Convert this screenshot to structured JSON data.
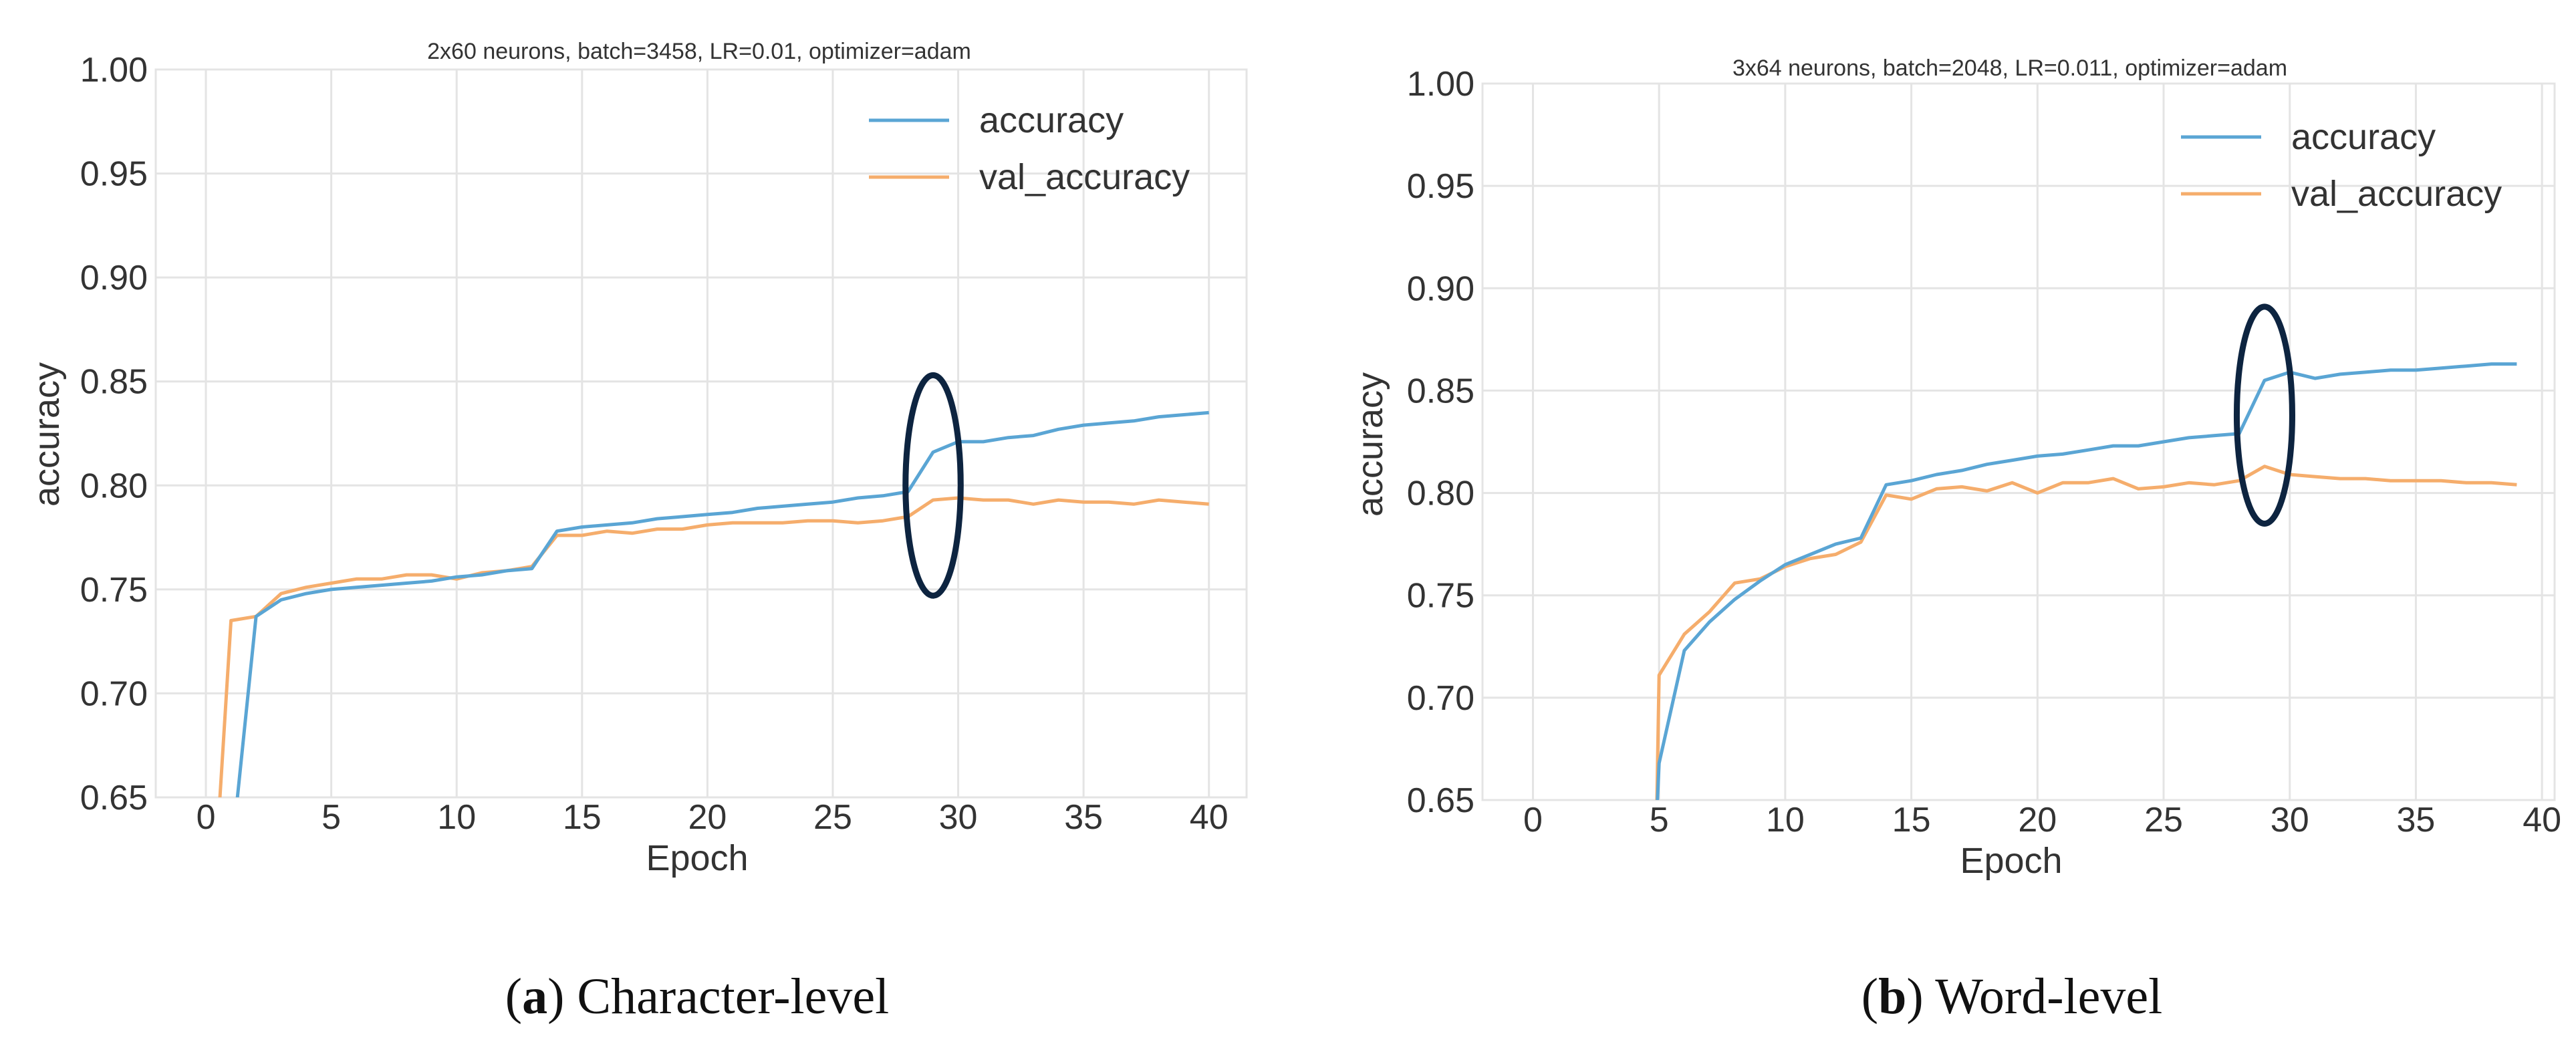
{
  "colors": {
    "accuracy": "#5aa5d4",
    "val_accuracy": "#f5ad6c",
    "grid": "#e4e4e4",
    "ellipse": "#0d2440"
  },
  "chart_data": [
    {
      "type": "line",
      "title": "2x60 neurons, batch=3458, LR=0.01, optimizer=adam",
      "xlabel": "Epoch",
      "ylabel": "accuracy",
      "xlim": [
        -2,
        41.5
      ],
      "ylim": [
        0.65,
        1.0
      ],
      "xticks": [
        0,
        5,
        10,
        15,
        20,
        25,
        30,
        35,
        40
      ],
      "yticks": [
        0.65,
        0.7,
        0.75,
        0.8,
        0.85,
        0.9,
        0.95,
        1.0
      ],
      "ytick_labels": [
        "0.65",
        "0.70",
        "0.75",
        "0.80",
        "0.85",
        "0.90",
        "0.95",
        "1.00"
      ],
      "grid": true,
      "legend": "top-right",
      "annotation": {
        "shape": "ellipse",
        "x": 29,
        "y": 0.8,
        "rx": 1.1,
        "ry": 0.053
      },
      "series": [
        {
          "name": "accuracy",
          "x": [
            1,
            2,
            3,
            4,
            5,
            6,
            7,
            8,
            9,
            10,
            11,
            12,
            13,
            14,
            15,
            16,
            17,
            18,
            19,
            20,
            21,
            22,
            23,
            24,
            25,
            26,
            27,
            28,
            29,
            30,
            31,
            32,
            33,
            34,
            35,
            36,
            37,
            38,
            39,
            40
          ],
          "values": [
            0.62,
            0.737,
            0.745,
            0.748,
            0.75,
            0.751,
            0.752,
            0.753,
            0.754,
            0.756,
            0.757,
            0.759,
            0.76,
            0.778,
            0.78,
            0.781,
            0.782,
            0.784,
            0.785,
            0.786,
            0.787,
            0.789,
            0.79,
            0.791,
            0.792,
            0.794,
            0.795,
            0.797,
            0.816,
            0.821,
            0.821,
            0.823,
            0.824,
            0.827,
            0.829,
            0.83,
            0.831,
            0.833,
            0.834,
            0.835
          ]
        },
        {
          "name": "val_accuracy",
          "x": [
            0.3,
            1,
            2,
            3,
            4,
            5,
            6,
            7,
            8,
            9,
            10,
            11,
            12,
            13,
            14,
            15,
            16,
            17,
            18,
            19,
            20,
            21,
            22,
            23,
            24,
            25,
            26,
            27,
            28,
            29,
            30,
            31,
            32,
            33,
            34,
            35,
            36,
            37,
            38,
            39,
            40
          ],
          "values": [
            0.6,
            0.735,
            0.737,
            0.748,
            0.751,
            0.753,
            0.755,
            0.755,
            0.757,
            0.757,
            0.755,
            0.758,
            0.759,
            0.761,
            0.776,
            0.776,
            0.778,
            0.777,
            0.779,
            0.779,
            0.781,
            0.782,
            0.782,
            0.782,
            0.783,
            0.783,
            0.782,
            0.783,
            0.785,
            0.793,
            0.794,
            0.793,
            0.793,
            0.791,
            0.793,
            0.792,
            0.792,
            0.791,
            0.793,
            0.792,
            0.791
          ]
        }
      ]
    },
    {
      "type": "line",
      "title": "3x64 neurons, batch=2048, LR=0.011, optimizer=adam",
      "xlabel": "Epoch",
      "ylabel": "accuracy",
      "xlim": [
        -2,
        40.5
      ],
      "ylim": [
        0.65,
        1.0
      ],
      "xticks": [
        0,
        5,
        10,
        15,
        20,
        25,
        30,
        35,
        40
      ],
      "yticks": [
        0.65,
        0.7,
        0.75,
        0.8,
        0.85,
        0.9,
        0.95,
        1.0
      ],
      "ytick_labels": [
        "0.65",
        "0.70",
        "0.75",
        "0.80",
        "0.85",
        "0.90",
        "0.95",
        "1.00"
      ],
      "grid": true,
      "legend": "top-right",
      "annotation": {
        "shape": "ellipse",
        "x": 29,
        "y": 0.838,
        "rx": 1.1,
        "ry": 0.053
      },
      "series": [
        {
          "name": "accuracy",
          "x": [
            4.9,
            5,
            6,
            7,
            8,
            9,
            10,
            11,
            12,
            13,
            14,
            15,
            16,
            17,
            18,
            19,
            20,
            21,
            22,
            23,
            24,
            25,
            26,
            27,
            28,
            29,
            30,
            31,
            32,
            33,
            34,
            35,
            36,
            37,
            38,
            39
          ],
          "values": [
            0.64,
            0.668,
            0.723,
            0.737,
            0.748,
            0.757,
            0.765,
            0.77,
            0.775,
            0.778,
            0.804,
            0.806,
            0.809,
            0.811,
            0.814,
            0.816,
            0.818,
            0.819,
            0.821,
            0.823,
            0.823,
            0.825,
            0.827,
            0.828,
            0.829,
            0.855,
            0.859,
            0.856,
            0.858,
            0.859,
            0.86,
            0.86,
            0.861,
            0.862,
            0.863,
            0.863
          ]
        },
        {
          "name": "val_accuracy",
          "x": [
            4.9,
            5,
            6,
            7,
            8,
            9,
            10,
            11,
            12,
            13,
            14,
            15,
            16,
            17,
            18,
            19,
            20,
            21,
            22,
            23,
            24,
            25,
            26,
            27,
            28,
            29,
            30,
            31,
            32,
            33,
            34,
            35,
            36,
            37,
            38,
            39
          ],
          "values": [
            0.64,
            0.711,
            0.731,
            0.742,
            0.756,
            0.758,
            0.764,
            0.768,
            0.77,
            0.776,
            0.799,
            0.797,
            0.802,
            0.803,
            0.801,
            0.805,
            0.8,
            0.805,
            0.805,
            0.807,
            0.802,
            0.803,
            0.805,
            0.804,
            0.806,
            0.813,
            0.809,
            0.808,
            0.807,
            0.807,
            0.806,
            0.806,
            0.806,
            0.805,
            0.805,
            0.804
          ]
        }
      ]
    }
  ],
  "captions": [
    {
      "letter": "a",
      "text": "Character-level"
    },
    {
      "letter": "b",
      "text": "Word-level"
    }
  ]
}
